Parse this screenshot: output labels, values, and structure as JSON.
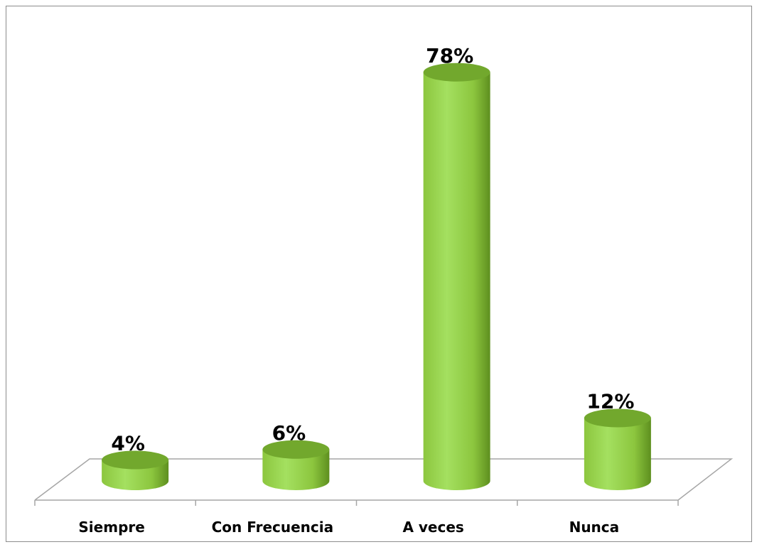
{
  "chart_data": {
    "type": "bar",
    "style": "3d-cylinder",
    "categories": [
      "Siempre",
      "Con Frecuencia",
      "A veces",
      "Nunca"
    ],
    "values": [
      4,
      6,
      78,
      12
    ],
    "value_labels": [
      "4%",
      "6%",
      "78%",
      "12%"
    ],
    "unit": "%",
    "title": "",
    "xlabel": "",
    "ylabel": "",
    "ylim": [
      0,
      80
    ],
    "grid": false,
    "legend": "none",
    "colors": {
      "bar_light": "#a4e060",
      "bar_mid": "#8cc63e",
      "bar_dark": "#5e8f1f",
      "bar_top": "#72a82d",
      "floor_line": "#a6a6a6"
    }
  }
}
